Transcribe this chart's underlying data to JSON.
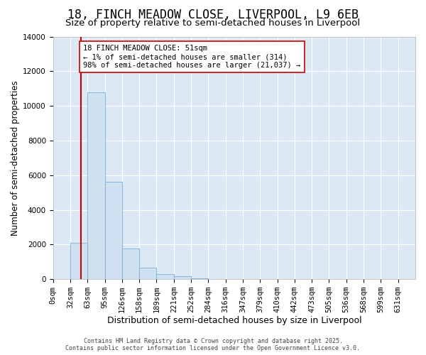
{
  "title1": "18, FINCH MEADOW CLOSE, LIVERPOOL, L9 6EB",
  "title2": "Size of property relative to semi-detached houses in Liverpool",
  "xlabel": "Distribution of semi-detached houses by size in Liverpool",
  "ylabel": "Number of semi-detached properties",
  "bin_labels": [
    "0sqm",
    "32sqm",
    "63sqm",
    "95sqm",
    "126sqm",
    "158sqm",
    "189sqm",
    "221sqm",
    "252sqm",
    "284sqm",
    "316sqm",
    "347sqm",
    "379sqm",
    "410sqm",
    "442sqm",
    "473sqm",
    "505sqm",
    "536sqm",
    "568sqm",
    "599sqm",
    "631sqm"
  ],
  "bar_values": [
    0,
    2100,
    10800,
    5600,
    1750,
    650,
    280,
    150,
    60,
    20,
    5,
    2,
    1,
    0,
    0,
    0,
    0,
    0,
    0,
    0,
    0
  ],
  "bar_color": "#cfe0f0",
  "bar_edge_color": "#7bafd4",
  "ylim": [
    0,
    14000
  ],
  "yticks": [
    0,
    2000,
    4000,
    6000,
    8000,
    10000,
    12000,
    14000
  ],
  "bin_edges": [
    0,
    32,
    63,
    95,
    126,
    158,
    189,
    221,
    252,
    284,
    316,
    347,
    379,
    410,
    442,
    473,
    505,
    536,
    568,
    599,
    631
  ],
  "property_size": 51,
  "property_label": "18 FINCH MEADOW CLOSE: 51sqm",
  "annotation_line1": "← 1% of semi-detached houses are smaller (314)",
  "annotation_line2": "98% of semi-detached houses are larger (21,037) →",
  "vline_color": "#cc0000",
  "annotation_box_facecolor": "#ffffff",
  "annotation_box_edgecolor": "#cc0000",
  "fig_bg_color": "#ffffff",
  "plot_bg_color": "#dce9f5",
  "grid_color": "#ffffff",
  "footer1": "Contains HM Land Registry data © Crown copyright and database right 2025.",
  "footer2": "Contains public sector information licensed under the Open Government Licence v3.0.",
  "title1_fontsize": 12,
  "title2_fontsize": 9.5,
  "xlabel_fontsize": 9,
  "ylabel_fontsize": 8.5,
  "tick_fontsize": 7.5,
  "annot_fontsize": 7.5,
  "footer_fontsize": 6
}
